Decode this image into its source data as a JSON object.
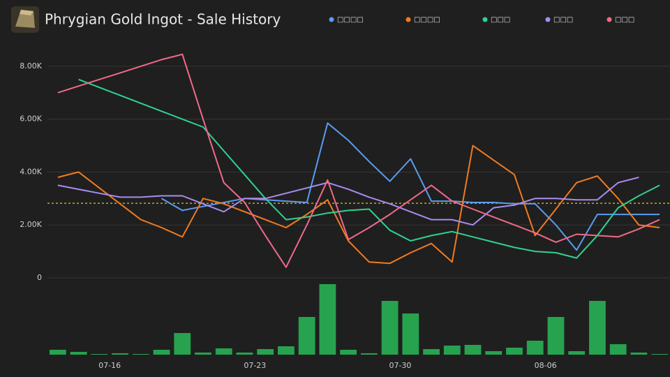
{
  "chart_data": {
    "type": "line",
    "title": "Phrygian Gold Ingot - Sale History",
    "categories": [
      null,
      null,
      null,
      "07-16",
      null,
      null,
      null,
      null,
      null,
      null,
      "07-23",
      null,
      null,
      null,
      null,
      null,
      null,
      "07-30",
      null,
      null,
      null,
      null,
      null,
      null,
      "08-06",
      null,
      null,
      null,
      null,
      null
    ],
    "series": [
      {
        "name": "□□□□",
        "color": "#5b9cf0",
        "values": [
          null,
          null,
          null,
          null,
          null,
          3000,
          2550,
          2700,
          2850,
          3000,
          2950,
          2900,
          2850,
          5850,
          5200,
          4400,
          3650,
          4500,
          2900,
          2900,
          2850,
          2850,
          2800,
          2800,
          2000,
          1050,
          2400,
          2400,
          2400,
          2400
        ]
      },
      {
        "name": "□□□□",
        "color": "#f07b22",
        "values": [
          3800,
          4000,
          3400,
          2800,
          2200,
          1900,
          1550,
          3000,
          2800,
          2500,
          2200,
          1900,
          2400,
          2950,
          1400,
          600,
          550,
          950,
          1300,
          600,
          5000,
          4450,
          3900,
          1600,
          2600,
          3600,
          3850,
          3000,
          2000,
          1900
        ]
      },
      {
        "name": "□□□",
        "color": "#2fd38f",
        "values": [
          null,
          7500,
          7200,
          6900,
          6600,
          6300,
          6000,
          5700,
          4800,
          3900,
          3000,
          2200,
          2300,
          2450,
          2550,
          2600,
          1800,
          1400,
          1600,
          1750,
          1550,
          1350,
          1150,
          1000,
          950,
          750,
          1600,
          2650,
          3100,
          3500
        ]
      },
      {
        "name": "□□□",
        "color": "#a98cf0",
        "values": [
          3500,
          3350,
          3200,
          3050,
          3050,
          3100,
          3100,
          2800,
          2500,
          3000,
          3000,
          3200,
          3400,
          3600,
          3350,
          3050,
          2800,
          2500,
          2200,
          2200,
          2000,
          2650,
          2750,
          3000,
          3000,
          2950,
          2950,
          3600,
          3800,
          null
        ]
      },
      {
        "name": "□□□",
        "color": "#f06a88",
        "values": [
          7000,
          7250,
          7500,
          7750,
          8000,
          8250,
          8450,
          6000,
          3600,
          2850,
          1600,
          400,
          2000,
          3700,
          1450,
          1900,
          2400,
          2950,
          3500,
          2900,
          2600,
          2300,
          2000,
          1700,
          1350,
          1650,
          1600,
          1550,
          1850,
          2200
        ]
      }
    ],
    "average": 2820,
    "average_color": "#e8c22a",
    "volume": {
      "color": "#27a24f",
      "values": [
        6,
        3,
        0,
        1,
        0,
        6,
        30,
        2,
        8,
        2,
        7,
        11,
        53,
        100,
        6,
        1,
        76,
        58,
        7,
        12,
        13,
        4,
        9,
        19,
        53,
        4,
        76,
        14,
        2,
        0
      ],
      "vlim": [
        0,
        100
      ]
    },
    "ylim": [
      0,
      9000
    ],
    "yticks": [
      0,
      {
        "value": 2000,
        "label": "2.00K"
      },
      {
        "value": 4000,
        "label": "4.00K"
      },
      {
        "value": 6000,
        "label": "6.00K"
      },
      {
        "value": 8000,
        "label": "8.00K"
      }
    ],
    "grid": true
  }
}
